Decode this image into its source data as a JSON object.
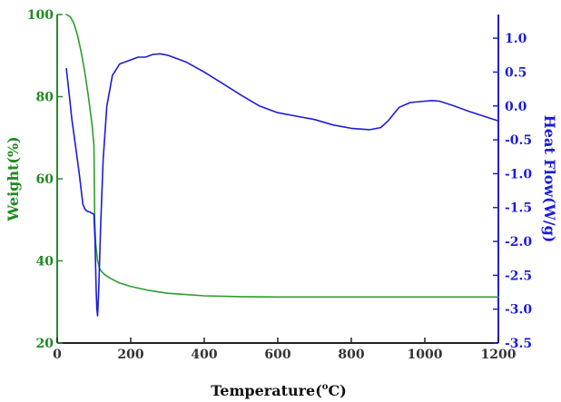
{
  "chart_data": {
    "type": "line",
    "dual_axis": true,
    "x_axis": {
      "label_text": "Temperature(",
      "label_sup": "o",
      "label_unit": "C)",
      "range": [
        0,
        1200
      ],
      "ticks": [
        0,
        200,
        400,
        600,
        800,
        1000,
        1200
      ]
    },
    "y_left": {
      "label": "Weight(%)",
      "range": [
        20,
        100
      ],
      "ticks": [
        20,
        40,
        60,
        80,
        100
      ],
      "color": "#1f8a1f"
    },
    "y_right": {
      "label": "Heat Flow(W/g)",
      "range": [
        -3.5,
        1.35
      ],
      "ticks": [
        "1.0",
        "0.5",
        "0.0",
        "-0.5",
        "-1.0",
        "-1.5",
        "-2.0",
        "-2.5",
        "-3.0",
        "-3.5"
      ],
      "color": "#1c1cd8"
    },
    "series": [
      {
        "axis": "left",
        "color": "#2e9c2e",
        "x": [
          25,
          35,
          45,
          55,
          65,
          75,
          85,
          95,
          100,
          102,
          105,
          110,
          115,
          120,
          130,
          140,
          150,
          170,
          200,
          250,
          300,
          350,
          400,
          500,
          600,
          800,
          1000,
          1200
        ],
        "y": [
          100,
          99.5,
          98,
          95,
          91,
          86,
          80,
          73,
          68,
          50,
          44,
          40,
          38.2,
          37.5,
          36.6,
          36,
          35.5,
          34.6,
          33.8,
          32.8,
          32.1,
          31.8,
          31.5,
          31.3,
          31.2,
          31.2,
          31.2,
          31.2
        ]
      },
      {
        "axis": "right",
        "color": "#1c1cd8",
        "x": [
          25,
          32,
          40,
          50,
          60,
          70,
          75,
          80,
          90,
          100,
          103,
          106,
          108,
          110,
          113,
          118,
          125,
          135,
          150,
          170,
          200,
          220,
          240,
          260,
          280,
          300,
          350,
          400,
          450,
          500,
          550,
          600,
          650,
          700,
          750,
          800,
          850,
          880,
          900,
          930,
          960,
          1000,
          1020,
          1040,
          1080,
          1120,
          1160,
          1200
        ],
        "y": [
          0.55,
          0.2,
          -0.2,
          -0.6,
          -1.0,
          -1.45,
          -1.52,
          -1.55,
          -1.57,
          -1.6,
          -2.0,
          -2.7,
          -3.0,
          -3.1,
          -2.7,
          -1.8,
          -0.8,
          0.0,
          0.45,
          0.62,
          0.68,
          0.72,
          0.72,
          0.76,
          0.77,
          0.75,
          0.65,
          0.5,
          0.33,
          0.16,
          0.0,
          -0.1,
          -0.15,
          -0.2,
          -0.28,
          -0.33,
          -0.35,
          -0.32,
          -0.22,
          -0.02,
          0.05,
          0.07,
          0.08,
          0.07,
          0.0,
          -0.08,
          -0.15,
          -0.22
        ]
      }
    ]
  }
}
